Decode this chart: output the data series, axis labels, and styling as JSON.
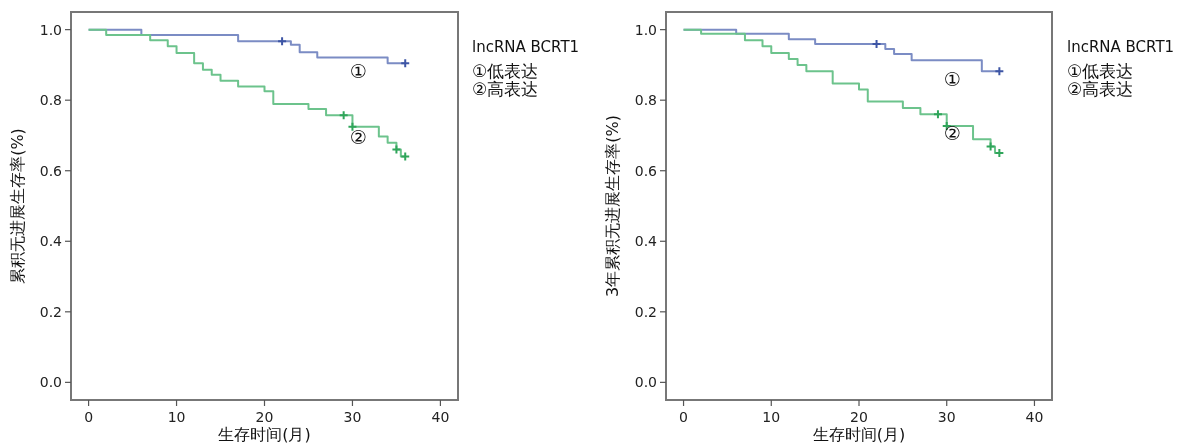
{
  "chart_data": [
    {
      "type": "step",
      "xlabel": "生存时间(月)",
      "ylabel": "累积无进展生存率(%)",
      "legend_title": "lncRNA BCRT1",
      "legend": "right",
      "xlim": [
        -2,
        42
      ],
      "ylim": [
        -0.05,
        1.05
      ],
      "xticks": [
        0,
        10,
        20,
        30,
        40
      ],
      "yticks": [
        {
          "value": 0,
          "label": "0.0"
        },
        {
          "value": 0.2,
          "label": "0.2"
        },
        {
          "value": 0.4,
          "label": "0.4"
        },
        {
          "value": 0.6,
          "label": "0.6"
        },
        {
          "value": 0.8,
          "label": "0.8"
        },
        {
          "value": 1,
          "label": "1.0"
        }
      ],
      "series": [
        {
          "name": "①低表达",
          "color": "#7b8cc4",
          "x": [
            0,
            6,
            17,
            23,
            24,
            26,
            34,
            36
          ],
          "values": [
            1,
            0.985,
            0.967,
            0.957,
            0.936,
            0.921,
            0.905,
            0.905
          ]
        },
        {
          "name": "②高表达",
          "color": "#6cc38c",
          "x": [
            0,
            2,
            7,
            9,
            10,
            12,
            13,
            14,
            15,
            17,
            20,
            21,
            25,
            27,
            30,
            33,
            34,
            35,
            35.5,
            36
          ],
          "values": [
            1,
            0.985,
            0.97,
            0.953,
            0.934,
            0.905,
            0.886,
            0.872,
            0.855,
            0.839,
            0.825,
            0.789,
            0.775,
            0.757,
            0.725,
            0.697,
            0.679,
            0.66,
            0.64,
            0.64
          ]
        },
        {
          "type": "scatter",
          "marker": "cross",
          "color": "#3d55a5",
          "x": [
            22,
            36
          ],
          "values": [
            0.967,
            0.905
          ]
        },
        {
          "type": "scatter",
          "marker": "cross",
          "color": "#2fa55a",
          "x": [
            29,
            30,
            35,
            36
          ],
          "values": [
            0.757,
            0.725,
            0.66,
            0.64
          ]
        }
      ],
      "annotations": [
        "①",
        "②"
      ]
    },
    {
      "type": "step",
      "xlabel": "生存时间(月)",
      "ylabel": "3年累积无进展生存率(%)",
      "legend_title": "lncRNA BCRT1",
      "legend": "right",
      "xlim": [
        -2,
        42
      ],
      "ylim": [
        -0.05,
        1.05
      ],
      "xticks": [
        0,
        10,
        20,
        30,
        40
      ],
      "yticks": [
        {
          "value": 0,
          "label": "0.0"
        },
        {
          "value": 0.2,
          "label": "0.2"
        },
        {
          "value": 0.4,
          "label": "0.4"
        },
        {
          "value": 0.6,
          "label": "0.6"
        },
        {
          "value": 0.8,
          "label": "0.8"
        },
        {
          "value": 1,
          "label": "1.0"
        }
      ],
      "series": [
        {
          "name": "①低表达",
          "color": "#7b8cc4",
          "x": [
            0,
            6,
            12,
            15,
            23,
            24,
            26,
            34,
            36
          ],
          "values": [
            1,
            0.988,
            0.973,
            0.959,
            0.945,
            0.931,
            0.913,
            0.882,
            0.882
          ]
        },
        {
          "name": "②高表达",
          "color": "#6cc38c",
          "x": [
            0,
            2,
            7,
            9,
            10,
            12,
            13,
            14,
            17,
            20,
            21,
            25,
            27,
            30,
            33,
            35,
            35.5,
            36
          ],
          "values": [
            1,
            0.988,
            0.97,
            0.953,
            0.934,
            0.917,
            0.9,
            0.882,
            0.847,
            0.83,
            0.796,
            0.778,
            0.76,
            0.727,
            0.689,
            0.669,
            0.65,
            0.65
          ]
        },
        {
          "type": "scatter",
          "marker": "cross",
          "color": "#3d55a5",
          "x": [
            22,
            36
          ],
          "values": [
            0.959,
            0.882
          ]
        },
        {
          "type": "scatter",
          "marker": "cross",
          "color": "#2fa55a",
          "x": [
            29,
            30,
            35,
            36
          ],
          "values": [
            0.76,
            0.727,
            0.669,
            0.65
          ]
        }
      ],
      "annotations": [
        "①",
        "②"
      ]
    }
  ]
}
